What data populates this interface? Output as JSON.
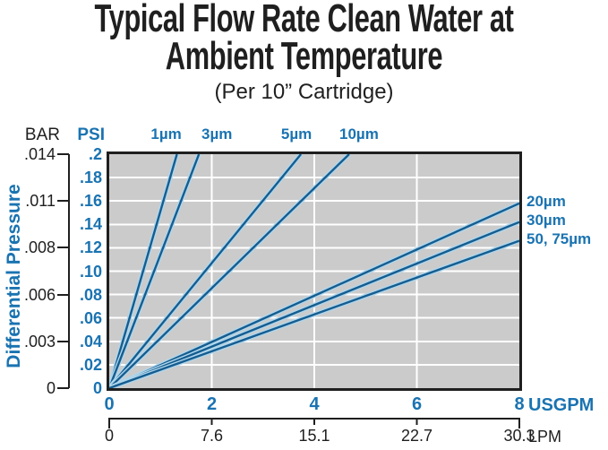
{
  "colors": {
    "accent_blue": "#1a73b1",
    "line_core": "#155d90",
    "line_halo": "#b0d6ec",
    "plot_bg": "#cbcbcb",
    "grid_white": "#ffffff",
    "ink_black": "#1f1f1f"
  },
  "title": {
    "line1": "Typical Flow Rate Clean Water at",
    "line2": "Ambient Temperature",
    "subtitle": "(Per 10” Cartridge)"
  },
  "chart_data": {
    "type": "line",
    "title": "Typical Flow Rate Clean Water at Ambient Temperature (Per 10” Cartridge)",
    "ylabel": "Differential Pressure",
    "x_range": [
      0,
      8
    ],
    "y_range_psi": [
      0,
      0.2
    ],
    "grid": {
      "x_lines_usgpm": [
        2,
        4,
        6
      ],
      "y_step_psi": 0.02
    },
    "y_primary": {
      "unit": "PSI",
      "ticks": [
        {
          "label": ".2",
          "value": 0.2
        },
        {
          "label": ".18",
          "value": 0.18
        },
        {
          "label": ".16",
          "value": 0.16
        },
        {
          "label": ".14",
          "value": 0.14
        },
        {
          "label": ".12",
          "value": 0.12
        },
        {
          "label": ".10",
          "value": 0.1
        },
        {
          "label": ".08",
          "value": 0.08
        },
        {
          "label": ".06",
          "value": 0.06
        },
        {
          "label": ".04",
          "value": 0.04
        },
        {
          "label": ".02",
          "value": 0.02
        },
        {
          "label": "0",
          "value": 0
        }
      ]
    },
    "y_secondary": {
      "unit": "BAR",
      "ticks": [
        {
          "label": ".014",
          "at_psi": 0.2
        },
        {
          "label": ".011",
          "at_psi": 0.16
        },
        {
          "label": ".008",
          "at_psi": 0.12
        },
        {
          "label": ".006",
          "at_psi": 0.08
        },
        {
          "label": ".003",
          "at_psi": 0.04
        },
        {
          "label": "0",
          "at_psi": 0
        }
      ]
    },
    "x_primary": {
      "unit": "USGPM",
      "ticks": [
        {
          "label": "0",
          "value": 0
        },
        {
          "label": "2",
          "value": 2
        },
        {
          "label": "4",
          "value": 4
        },
        {
          "label": "6",
          "value": 6
        },
        {
          "label": "8",
          "value": 8
        }
      ]
    },
    "x_secondary": {
      "unit": "LPM",
      "ticks": [
        {
          "label": "0",
          "at_usgpm": 0
        },
        {
          "label": "7.6",
          "at_usgpm": 2
        },
        {
          "label": "15.1",
          "at_usgpm": 4
        },
        {
          "label": "22.7",
          "at_usgpm": 6
        },
        {
          "label": "30.3",
          "at_usgpm": 8
        }
      ]
    },
    "series": [
      {
        "name": "1µm",
        "label_side": "top",
        "points": [
          [
            0,
            0
          ],
          [
            1.32,
            0.2
          ]
        ]
      },
      {
        "name": "3µm",
        "label_side": "top",
        "points": [
          [
            0,
            0
          ],
          [
            1.75,
            0.2
          ]
        ]
      },
      {
        "name": "5µm",
        "label_side": "top",
        "points": [
          [
            0,
            0
          ],
          [
            3.74,
            0.2
          ]
        ]
      },
      {
        "name": "10µm",
        "label_side": "top",
        "points": [
          [
            0,
            0
          ],
          [
            4.68,
            0.2
          ]
        ]
      },
      {
        "name": "20µm",
        "label_side": "right",
        "points": [
          [
            0,
            0
          ],
          [
            8,
            0.158
          ]
        ]
      },
      {
        "name": "30µm",
        "label_side": "right",
        "points": [
          [
            0,
            0
          ],
          [
            8,
            0.142
          ]
        ]
      },
      {
        "name": "50, 75µm",
        "label_side": "right",
        "points": [
          [
            0,
            0
          ],
          [
            8,
            0.126
          ]
        ]
      }
    ]
  }
}
